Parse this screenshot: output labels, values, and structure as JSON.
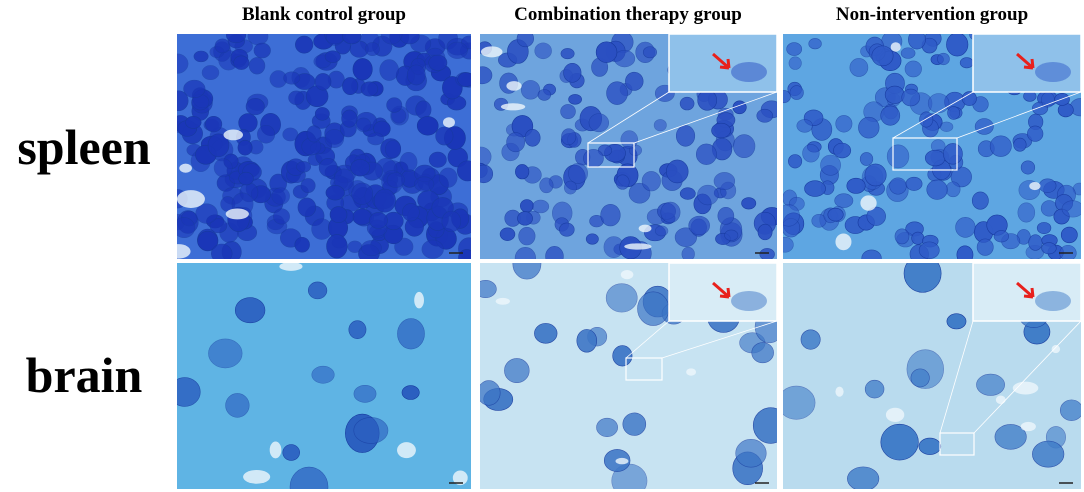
{
  "columns": [
    "Blank control group",
    "Combination therapy group",
    "Non-intervention group"
  ],
  "rows": [
    "spleen",
    "brain"
  ]
}
